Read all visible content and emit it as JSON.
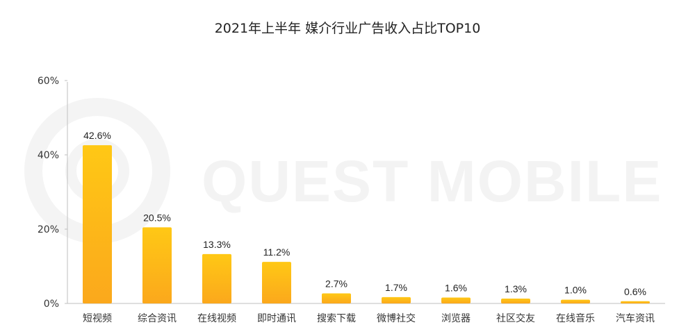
{
  "chart_data": {
    "type": "bar",
    "title": "2021年上半年 媒介行业广告收入占比TOP10",
    "categories": [
      "短视频",
      "综合资讯",
      "在线视频",
      "即时通讯",
      "搜索下载",
      "微博社交",
      "浏览器",
      "社区交友",
      "在线音乐",
      "汽车资讯"
    ],
    "values": [
      42.6,
      20.5,
      13.3,
      11.2,
      2.7,
      1.7,
      1.6,
      1.3,
      1.0,
      0.6
    ],
    "value_labels": [
      "42.6%",
      "20.5%",
      "13.3%",
      "11.2%",
      "2.7%",
      "1.7%",
      "1.6%",
      "1.3%",
      "1.0%",
      "0.6%"
    ],
    "ylim": [
      0,
      60
    ],
    "y_ticks": [
      0,
      20,
      40,
      60
    ],
    "y_tick_labels": [
      "0%",
      "20%",
      "40%",
      "60%"
    ],
    "xlabel": "",
    "ylabel": "",
    "grid": false,
    "bar_color_top": "#ffc815",
    "bar_color_bottom": "#fba81c"
  },
  "watermark": "QUEST MOBILE"
}
